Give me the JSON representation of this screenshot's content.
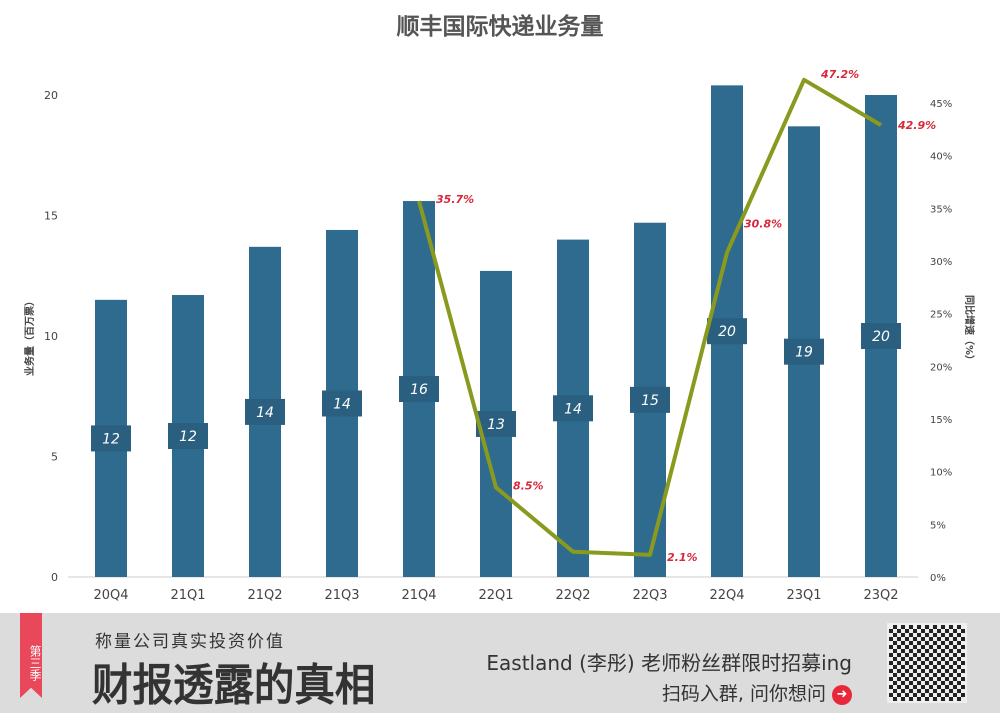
{
  "chart_data": {
    "type": "bar+line",
    "title": "顺丰国际快递业务量",
    "categories": [
      "20Q4",
      "21Q1",
      "21Q2",
      "21Q3",
      "21Q4",
      "22Q1",
      "22Q2",
      "22Q3",
      "22Q4",
      "23Q1",
      "23Q2"
    ],
    "ylabel": "业务量（百万票）",
    "y2label": "同比增速（%）",
    "ylim": [
      0,
      20
    ],
    "yticks": [
      0,
      5,
      10,
      15,
      20
    ],
    "y2lim": [
      0,
      45
    ],
    "y2ticks": [
      "0%",
      "5%",
      "10%",
      "15%",
      "20%",
      "25%",
      "30%",
      "35%",
      "40%",
      "45%"
    ],
    "series": [
      {
        "type": "bar",
        "color": "#2e6b8e",
        "values": [
          11.5,
          11.7,
          13.7,
          14.4,
          15.6,
          12.7,
          14.0,
          14.7,
          20.4,
          18.7,
          20.0
        ],
        "labels": [
          "12",
          "12",
          "14",
          "14",
          "16",
          "13",
          "14",
          "15",
          "20",
          "19",
          "20"
        ]
      },
      {
        "type": "line",
        "axis": "right",
        "color": "#8a9a1e",
        "values": [
          null,
          null,
          null,
          null,
          35.7,
          8.5,
          2.4,
          2.1,
          30.8,
          47.2,
          42.9
        ],
        "labels": [
          null,
          null,
          null,
          null,
          "35.7%",
          "8.5%",
          null,
          "2.1%",
          "30.8%",
          "47.2%",
          "42.9%"
        ],
        "label_color": "#d8283a"
      }
    ],
    "grid": false
  },
  "banner": {
    "season": "第三季",
    "subtitle": "称量公司真实投资价值",
    "title": "财报透露的真相",
    "promo": "Eastland (李彤) 老师粉丝群限时招募ing",
    "scan": "扫码入群, 问你想问"
  }
}
